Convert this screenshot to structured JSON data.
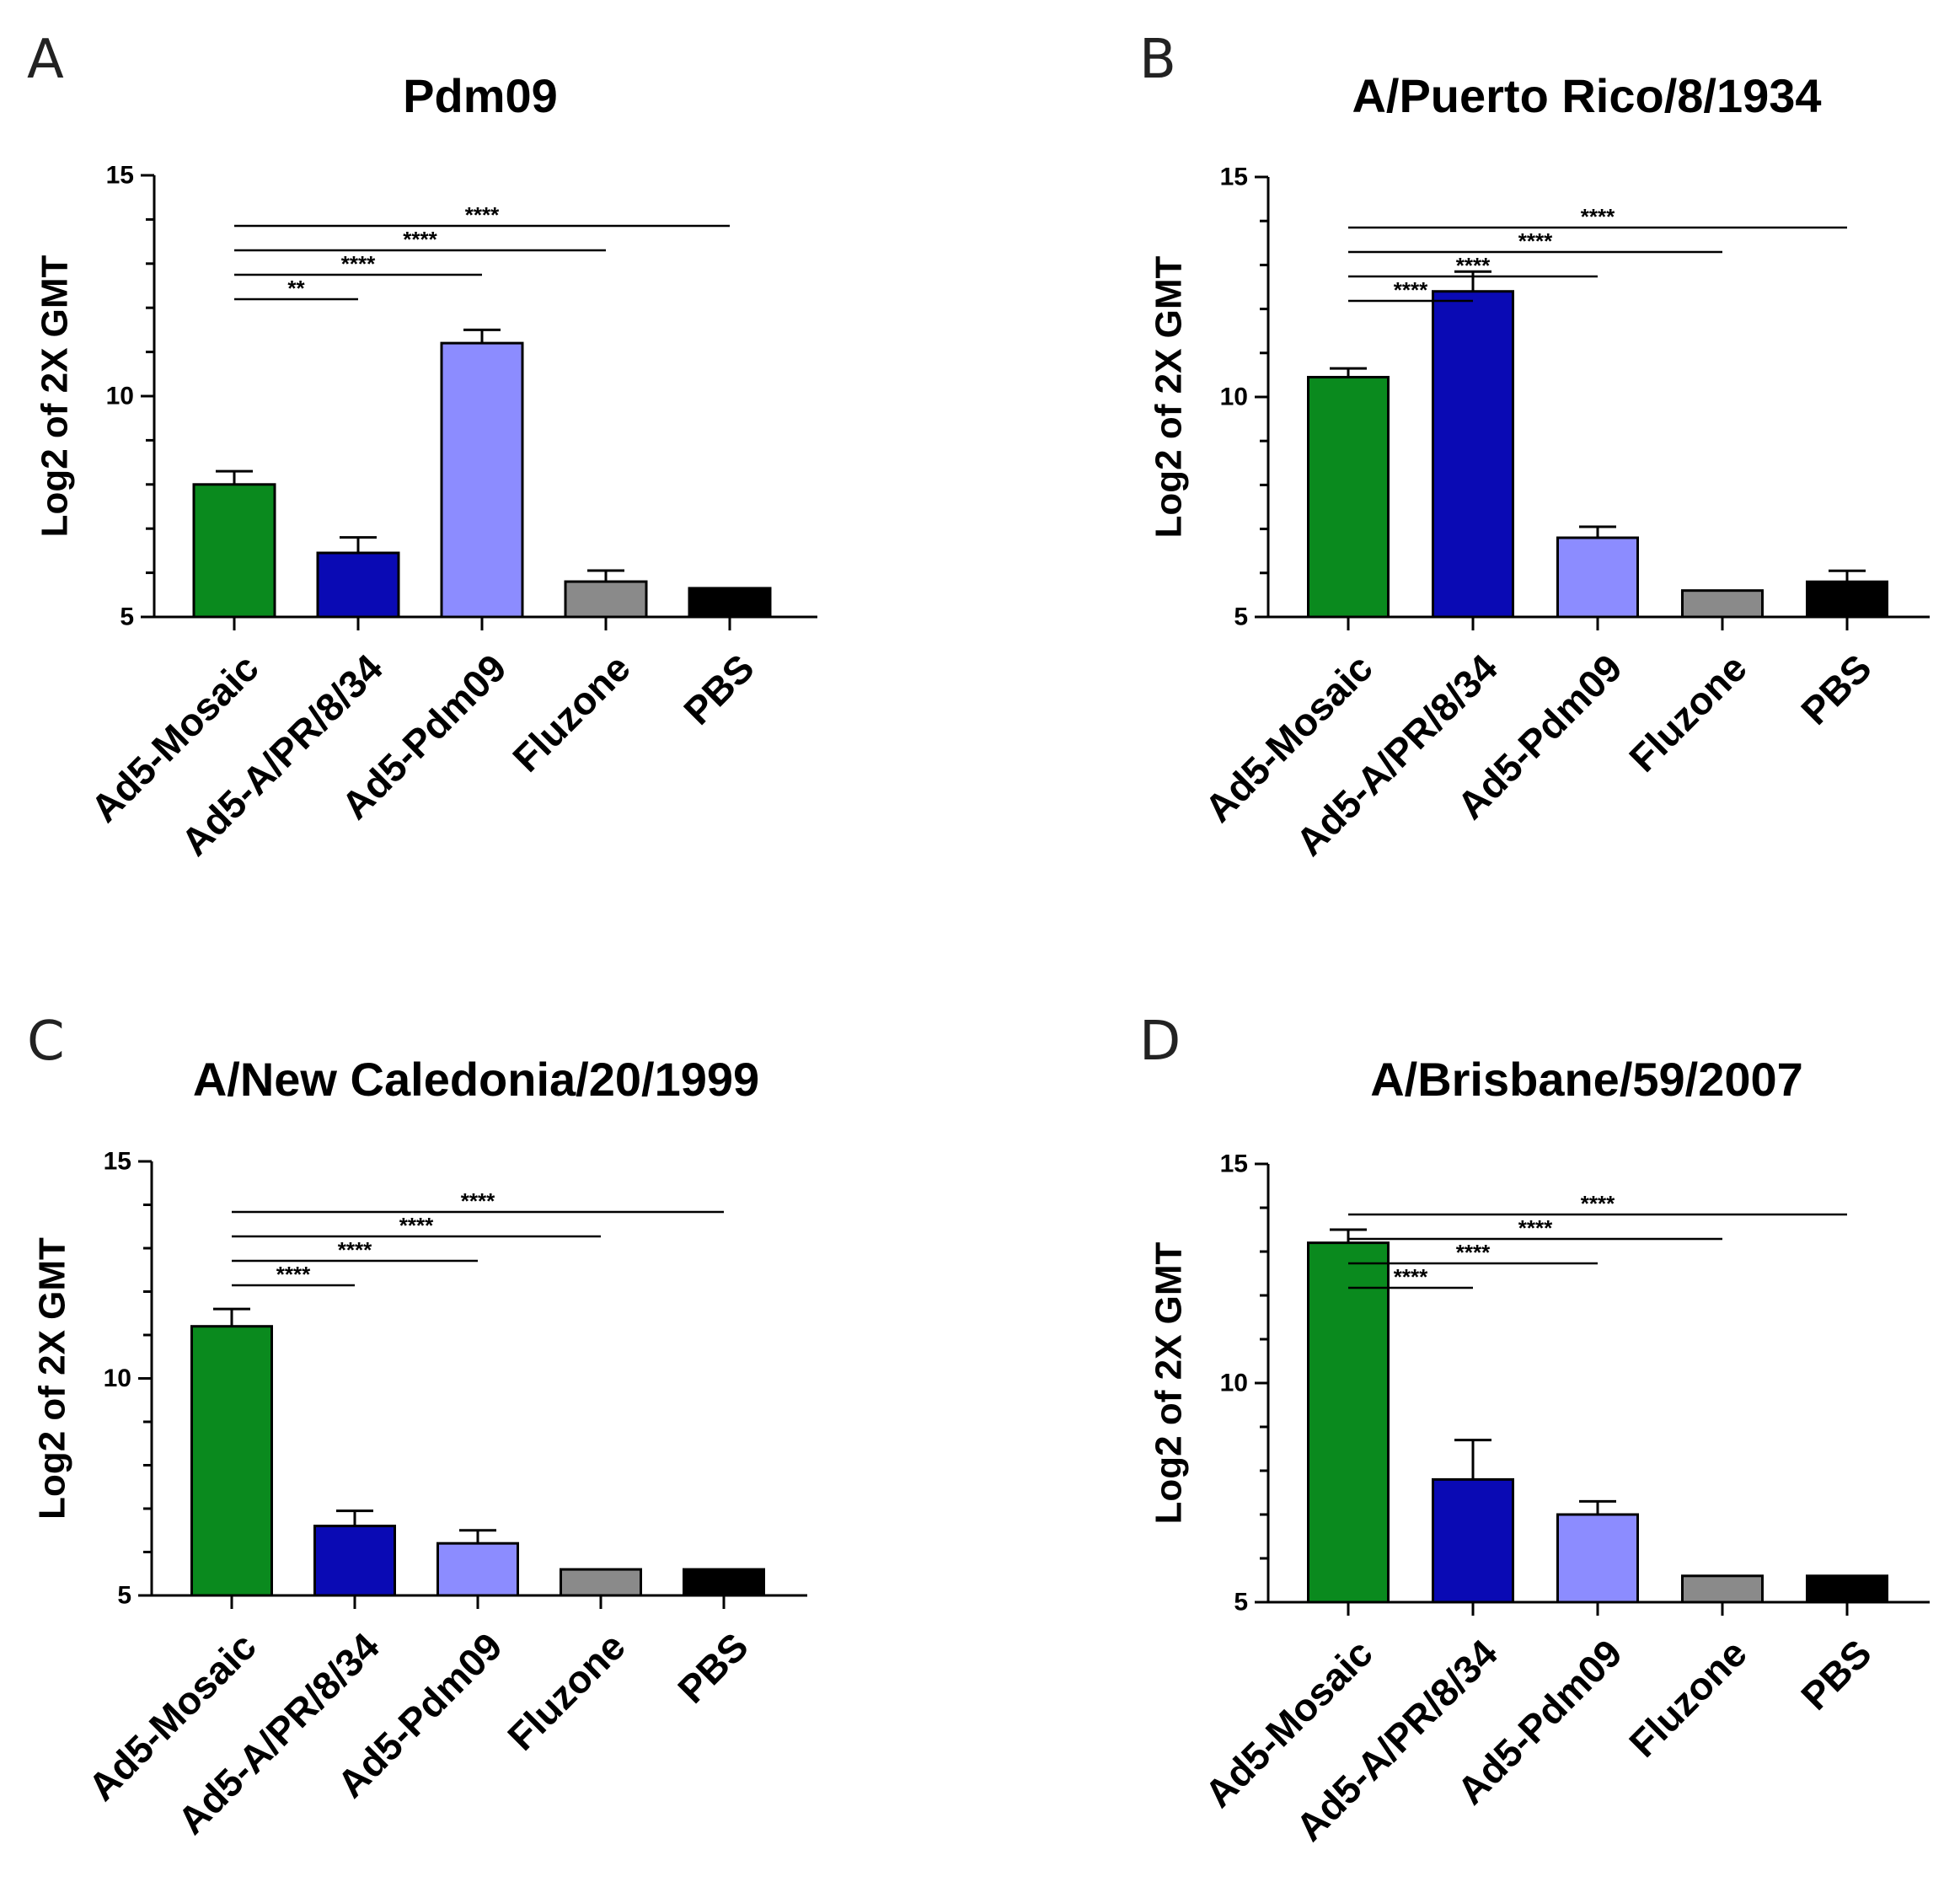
{
  "chart_data": [
    {
      "panel": "A",
      "type": "bar",
      "title": "Pdm09",
      "ylabel": "Log2 of 2X GMT",
      "xlabel": "",
      "ylim": [
        5,
        15
      ],
      "yticks": [
        "5",
        "10",
        "15"
      ],
      "categories": [
        "Ad5-Mosaic",
        "Ad5-A/PR/8/34",
        "Ad5-Pdm09",
        "Fluzone",
        "PBS"
      ],
      "values": [
        8.0,
        6.45,
        11.2,
        5.8,
        5.65
      ],
      "errors": [
        0.3,
        0.35,
        0.3,
        0.25,
        0.0
      ],
      "colors": [
        "#0a8a1e",
        "#0a0ab4",
        "#8c8cff",
        "#8a8a8a",
        "#000000"
      ],
      "significance": [
        {
          "from": 0,
          "to": 1,
          "label": "**"
        },
        {
          "from": 0,
          "to": 2,
          "label": "****"
        },
        {
          "from": 0,
          "to": 3,
          "label": "****"
        },
        {
          "from": 0,
          "to": 4,
          "label": "****"
        }
      ]
    },
    {
      "panel": "B",
      "type": "bar",
      "title": "A/Puerto Rico/8/1934",
      "ylabel": "Log2 of 2X GMT",
      "xlabel": "",
      "ylim": [
        5,
        15
      ],
      "yticks": [
        "5",
        "10",
        "15"
      ],
      "categories": [
        "Ad5-Mosaic",
        "Ad5-A/PR/8/34",
        "Ad5-Pdm09",
        "Fluzone",
        "PBS"
      ],
      "values": [
        10.45,
        12.4,
        6.8,
        5.6,
        5.8
      ],
      "errors": [
        0.2,
        0.45,
        0.25,
        0.0,
        0.25
      ],
      "colors": [
        "#0a8a1e",
        "#0a0ab4",
        "#8c8cff",
        "#8a8a8a",
        "#000000"
      ],
      "significance": [
        {
          "from": 0,
          "to": 1,
          "label": "****"
        },
        {
          "from": 0,
          "to": 2,
          "label": "****"
        },
        {
          "from": 0,
          "to": 3,
          "label": "****"
        },
        {
          "from": 0,
          "to": 4,
          "label": "****"
        }
      ]
    },
    {
      "panel": "C",
      "type": "bar",
      "title": "A/New Caledonia/20/1999",
      "ylabel": "Log2 of 2X GMT",
      "xlabel": "",
      "ylim": [
        5,
        15
      ],
      "yticks": [
        "5",
        "10",
        "15"
      ],
      "categories": [
        "Ad5-Mosaic",
        "Ad5-A/PR/8/34",
        "Ad5-Pdm09",
        "Fluzone",
        "PBS"
      ],
      "values": [
        11.2,
        6.6,
        6.2,
        5.6,
        5.6
      ],
      "errors": [
        0.4,
        0.35,
        0.3,
        0.0,
        0.0
      ],
      "colors": [
        "#0a8a1e",
        "#0a0ab4",
        "#8c8cff",
        "#8a8a8a",
        "#000000"
      ],
      "significance": [
        {
          "from": 0,
          "to": 1,
          "label": "****"
        },
        {
          "from": 0,
          "to": 2,
          "label": "****"
        },
        {
          "from": 0,
          "to": 3,
          "label": "****"
        },
        {
          "from": 0,
          "to": 4,
          "label": "****"
        }
      ]
    },
    {
      "panel": "D",
      "type": "bar",
      "title": "A/Brisbane/59/2007",
      "ylabel": "Log2 of 2X GMT",
      "xlabel": "",
      "ylim": [
        5,
        15
      ],
      "yticks": [
        "5",
        "10",
        "15"
      ],
      "categories": [
        "Ad5-Mosaic",
        "Ad5-A/PR/8/34",
        "Ad5-Pdm09",
        "Fluzone",
        "PBS"
      ],
      "values": [
        13.2,
        7.8,
        7.0,
        5.6,
        5.6
      ],
      "errors": [
        0.3,
        0.9,
        0.3,
        0.0,
        0.0
      ],
      "colors": [
        "#0a8a1e",
        "#0a0ab4",
        "#8c8cff",
        "#8a8a8a",
        "#000000"
      ],
      "significance": [
        {
          "from": 0,
          "to": 1,
          "label": "****"
        },
        {
          "from": 0,
          "to": 2,
          "label": "****"
        },
        {
          "from": 0,
          "to": 3,
          "label": "****"
        },
        {
          "from": 0,
          "to": 4,
          "label": "****"
        }
      ]
    }
  ]
}
